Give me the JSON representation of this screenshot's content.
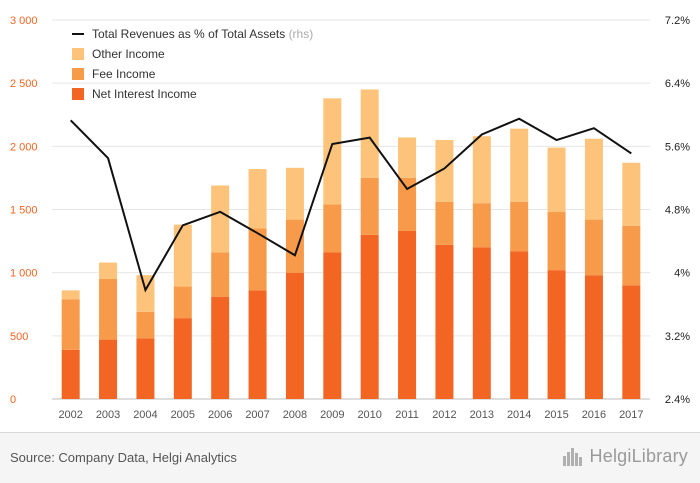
{
  "chart_data": {
    "type": "bar",
    "stacked": true,
    "categories": [
      "2002",
      "2003",
      "2004",
      "2005",
      "2006",
      "2007",
      "2008",
      "2009",
      "2010",
      "2011",
      "2012",
      "2013",
      "2014",
      "2015",
      "2016",
      "2017"
    ],
    "series": [
      {
        "name": "Net Interest Income",
        "color": "#f26522",
        "values": [
          390,
          470,
          480,
          640,
          810,
          860,
          1000,
          1160,
          1300,
          1330,
          1220,
          1200,
          1170,
          1020,
          980,
          900
        ]
      },
      {
        "name": "Fee Income",
        "color": "#f79b4b",
        "values": [
          400,
          480,
          210,
          250,
          350,
          490,
          420,
          380,
          450,
          420,
          340,
          350,
          390,
          460,
          440,
          470
        ]
      },
      {
        "name": "Other Income",
        "color": "#fdc37a",
        "values": [
          70,
          130,
          290,
          490,
          530,
          470,
          410,
          840,
          700,
          320,
          490,
          530,
          580,
          510,
          640,
          500
        ]
      }
    ],
    "line": {
      "name": "Total Revenues as % of Total Assets",
      "axis_note": "(rhs)",
      "color": "#111111",
      "values": [
        5.93,
        5.45,
        3.78,
        4.6,
        4.77,
        4.5,
        4.22,
        5.63,
        5.71,
        5.06,
        5.32,
        5.75,
        5.95,
        5.68,
        5.83,
        5.51
      ]
    },
    "y_left": {
      "min": 0,
      "max": 3000,
      "ticks": [
        "0",
        "500",
        "1 000",
        "1 500",
        "2 000",
        "2 500",
        "3 000"
      ],
      "tick_values": [
        0,
        500,
        1000,
        1500,
        2000,
        2500,
        3000
      ]
    },
    "y_right": {
      "min": 2.4,
      "max": 7.2,
      "ticks": [
        "2.4%",
        "3.2%",
        "4%",
        "4.8%",
        "5.6%",
        "6.4%",
        "7.2%"
      ],
      "tick_values": [
        2.4,
        3.2,
        4.0,
        4.8,
        5.6,
        6.4,
        7.2
      ]
    },
    "grid": true,
    "legend_position": "top-left",
    "colors": {
      "left_axis": "#f26522",
      "right_axis": "#222222",
      "grid": "#e6e6e6",
      "x_labels": "#555555"
    }
  },
  "footer": {
    "source": "Source: Company Data, Helgi Analytics",
    "brand": "HelgiLibrary"
  }
}
